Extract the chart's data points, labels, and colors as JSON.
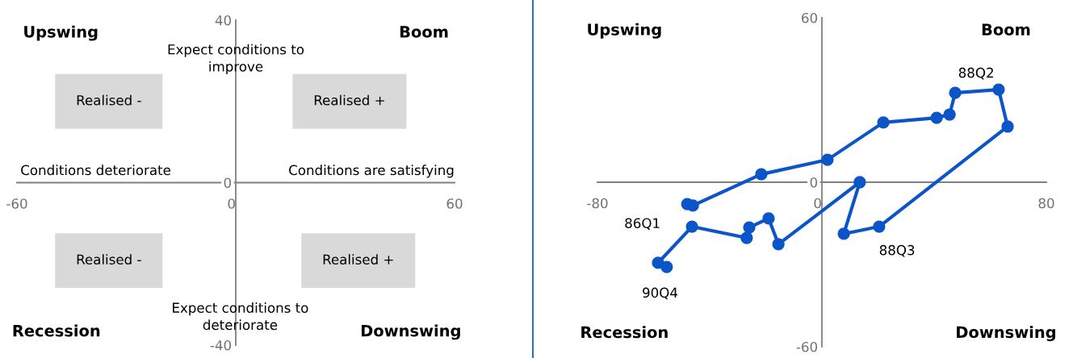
{
  "chart_data": [
    {
      "type": "scatter",
      "xlim": [
        -60,
        60
      ],
      "ylim": [
        -40,
        40
      ],
      "xticks": [
        -60,
        0,
        60
      ],
      "yticks": [
        -40,
        0,
        40
      ],
      "annotations": [
        "Upswing",
        "Boom",
        "Recession",
        "Downswing",
        "Expect conditions to\nimprove",
        "Expect conditions to\ndeteriorate",
        "Conditions deteriorate",
        "Conditions are satisfying",
        "Realised -",
        "Realised +",
        "Realised -",
        "Realised +"
      ]
    },
    {
      "type": "line",
      "xlim": [
        -80,
        80
      ],
      "ylim": [
        -60,
        60
      ],
      "xticks": [
        -80,
        0,
        80
      ],
      "yticks": [
        -60,
        0,
        60
      ],
      "grid": false,
      "marker": "circle",
      "line_style": "solid",
      "x": [
        -48,
        -46,
        -21.6,
        2,
        21.9,
        40.9,
        45.5,
        47.5,
        63,
        66.2,
        20.4,
        7.8,
        13.5,
        -15.5,
        -19,
        -25.9,
        -26.8,
        -46.3,
        -58.4,
        -55.3
      ],
      "series": [
        {
          "color": "#0b55c8",
          "values": [
            -8,
            -8.5,
            2.9,
            8.2,
            21.8,
            23.5,
            24.7,
            32.6,
            33.8,
            20.3,
            -16.2,
            -18.8,
            0,
            -22.6,
            -13.2,
            -16.5,
            -20.3,
            -16.2,
            -29.4,
            -30.9
          ]
        }
      ],
      "annotations": [
        "Upswing",
        "Boom",
        "Recession",
        "Downswing",
        {
          "text": "86Q1",
          "x": -48,
          "y": -8
        },
        {
          "text": "88Q2",
          "x": 63,
          "y": 33.8
        },
        {
          "text": "88Q3",
          "x": 20.4,
          "y": -16.2
        },
        {
          "text": "90Q4",
          "x": -55.3,
          "y": -30.9
        }
      ]
    }
  ]
}
